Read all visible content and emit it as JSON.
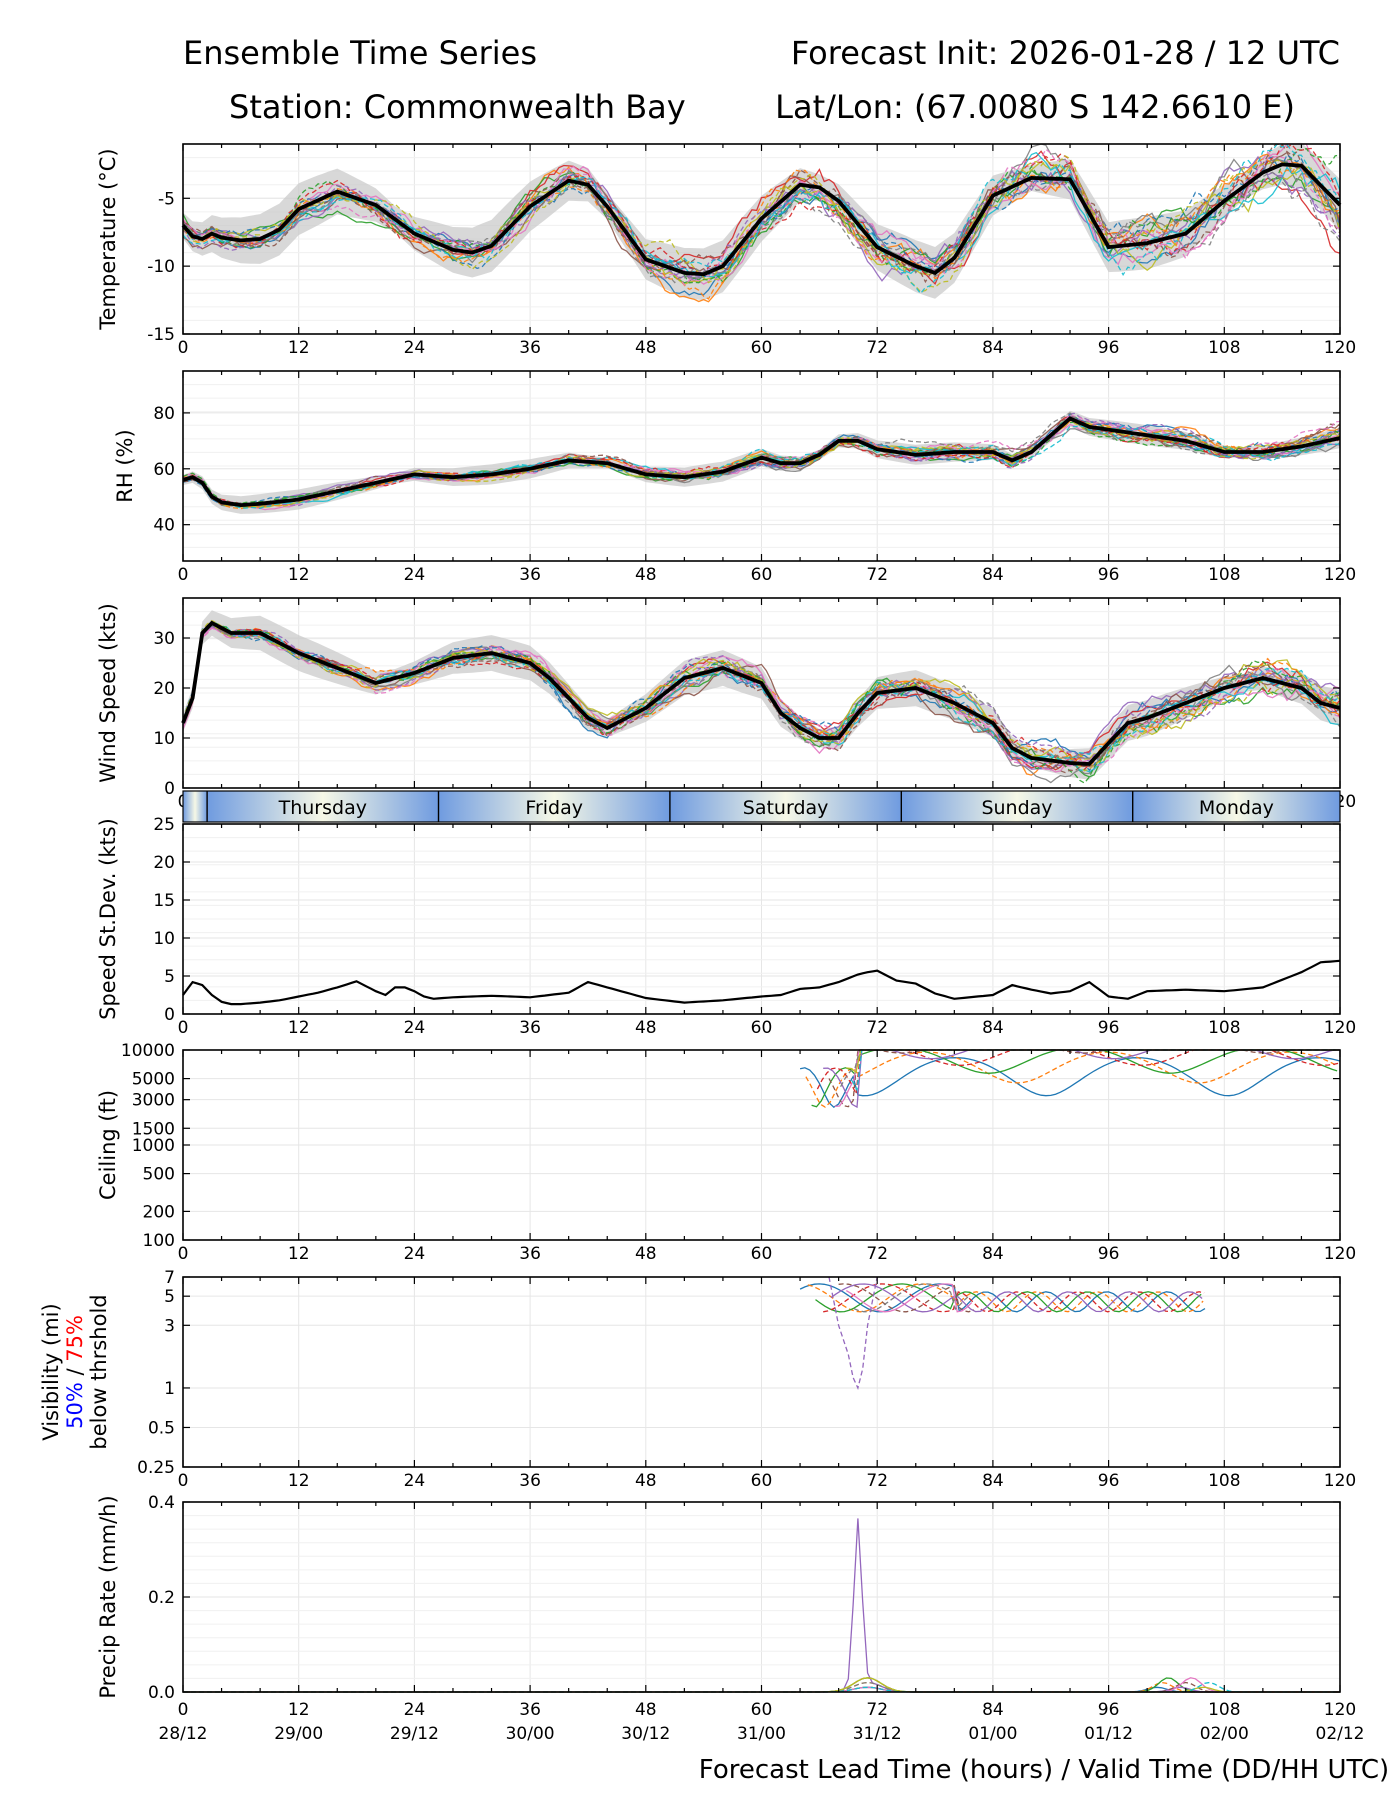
{
  "chart_data": {
    "type": "line",
    "title_left_1": "Ensemble Time Series",
    "title_right_1": "Forecast Init: 2026-01-28 / 12 UTC",
    "title_left_2": "Station: Commonwealth Bay",
    "title_right_2": "Lat/Lon: (67.0080 S 142.6610 E)",
    "xlabel": "Forecast Lead Time (hours) / Valid Time (DD/HH UTC)",
    "xlim": [
      0,
      120
    ],
    "x_ticks": [
      "0",
      "12",
      "24",
      "36",
      "48",
      "60",
      "72",
      "84",
      "96",
      "108",
      "120"
    ],
    "valid_times": [
      "28/12",
      "29/00",
      "29/12",
      "30/00",
      "30/12",
      "31/00",
      "31/12",
      "01/00",
      "01/12",
      "02/00",
      "02/12"
    ],
    "day_band": {
      "days": [
        "Thursday",
        "Friday",
        "Saturday",
        "Sunday",
        "Monday"
      ],
      "boundaries_hours": [
        2.5,
        26.5,
        50.5,
        74.5,
        98.5
      ]
    },
    "panels": [
      {
        "id": "temperature",
        "ylabel": "Temperature (°C)",
        "ylim": [
          -15,
          -1
        ],
        "y_ticks": [
          "-5",
          "-10",
          "-15"
        ],
        "y_tick_values": [
          -5,
          -10,
          -15
        ],
        "scale": "linear",
        "ensemble_mean": {
          "x": [
            0,
            1,
            2,
            3,
            4,
            6,
            8,
            10,
            12,
            16,
            20,
            24,
            28,
            30,
            32,
            36,
            40,
            42,
            44,
            48,
            52,
            54,
            56,
            60,
            64,
            66,
            68,
            72,
            76,
            78,
            80,
            84,
            88,
            92,
            96,
            100,
            104,
            108,
            112,
            114,
            116,
            120
          ],
          "y": [
            -7,
            -7.8,
            -8,
            -7.6,
            -7.9,
            -8.1,
            -8,
            -7.3,
            -5.8,
            -4.5,
            -5.5,
            -7.6,
            -8.8,
            -9,
            -8.5,
            -5.6,
            -3.7,
            -4,
            -5.6,
            -9.5,
            -10.5,
            -10.6,
            -10,
            -6.5,
            -4,
            -4.2,
            -5.2,
            -8.6,
            -10,
            -10.5,
            -9.4,
            -4.8,
            -3.5,
            -3.6,
            -8.6,
            -8.3,
            -7.6,
            -5.2,
            -3.1,
            -2.5,
            -2.6,
            -5.5
          ]
        },
        "spread_width": 1.6
      },
      {
        "id": "rh",
        "ylabel": "RH (%)",
        "ylim": [
          27,
          95
        ],
        "y_ticks": [
          "80",
          "60",
          "40"
        ],
        "y_tick_values": [
          80,
          60,
          40
        ],
        "scale": "linear",
        "ensemble_mean": {
          "x": [
            0,
            1,
            2,
            3,
            4,
            6,
            8,
            12,
            16,
            20,
            24,
            28,
            32,
            36,
            40,
            44,
            48,
            52,
            56,
            60,
            62,
            64,
            66,
            68,
            70,
            72,
            76,
            80,
            84,
            86,
            88,
            90,
            92,
            94,
            96,
            100,
            104,
            108,
            112,
            116,
            120
          ],
          "y": [
            56,
            57,
            55,
            50,
            48,
            47,
            47.5,
            49,
            52,
            55,
            58,
            57,
            58,
            60,
            63,
            62,
            58,
            57,
            59,
            64,
            62,
            62,
            65,
            70,
            70,
            67,
            65,
            66,
            66,
            63,
            66,
            72,
            78,
            75,
            74,
            72,
            70,
            66,
            66,
            68,
            71
          ]
        },
        "spread_width": 3
      },
      {
        "id": "wind",
        "ylabel": "Wind Speed (kts)",
        "ylim": [
          0,
          38
        ],
        "y_ticks": [
          "30",
          "20",
          "10",
          "0"
        ],
        "y_tick_values": [
          30,
          20,
          10,
          0
        ],
        "scale": "linear",
        "ensemble_mean": {
          "x": [
            0,
            1,
            2,
            3,
            4,
            5,
            6,
            8,
            10,
            12,
            16,
            20,
            24,
            28,
            32,
            36,
            38,
            40,
            42,
            44,
            48,
            52,
            56,
            60,
            62,
            64,
            66,
            68,
            70,
            72,
            76,
            80,
            84,
            86,
            88,
            92,
            94,
            96,
            98,
            100,
            104,
            108,
            112,
            116,
            118,
            120
          ],
          "y": [
            13,
            18,
            31,
            33,
            32,
            31,
            31,
            31,
            29,
            27,
            24,
            21,
            23,
            26,
            27,
            25,
            22,
            18,
            14,
            12,
            16,
            22,
            24,
            21,
            15,
            12,
            10,
            10,
            15,
            19,
            20,
            17,
            13,
            8,
            6,
            5,
            4.8,
            9,
            13,
            14,
            17,
            20,
            22,
            20,
            17,
            16
          ]
        },
        "spread_width": 3
      },
      {
        "id": "speed_stdev",
        "ylabel": "Speed St.Dev. (kts)",
        "ylim": [
          0,
          25
        ],
        "y_ticks": [
          "25",
          "20",
          "15",
          "10",
          "5",
          "0"
        ],
        "y_tick_values": [
          25,
          20,
          15,
          10,
          5,
          0
        ],
        "scale": "linear",
        "ensemble_mean": {
          "x": [
            0,
            1,
            2,
            3,
            4,
            5,
            6,
            8,
            10,
            12,
            14,
            16,
            18,
            20,
            21,
            22,
            23,
            24,
            25,
            26,
            28,
            32,
            36,
            40,
            42,
            44,
            48,
            52,
            56,
            60,
            62,
            64,
            66,
            68,
            70,
            71,
            72,
            74,
            76,
            78,
            80,
            84,
            86,
            88,
            90,
            92,
            94,
            96,
            98,
            100,
            104,
            108,
            112,
            116,
            118,
            120
          ],
          "y": [
            2.5,
            4.2,
            3.8,
            2.5,
            1.6,
            1.3,
            1.3,
            1.5,
            1.8,
            2.3,
            2.8,
            3.5,
            4.3,
            3.0,
            2.5,
            3.5,
            3.5,
            3.0,
            2.3,
            2.0,
            2.2,
            2.4,
            2.2,
            2.8,
            4.2,
            3.5,
            2.1,
            1.5,
            1.8,
            2.3,
            2.5,
            3.3,
            3.5,
            4.2,
            5.2,
            5.5,
            5.7,
            4.4,
            4.0,
            2.7,
            2.0,
            2.5,
            3.8,
            3.2,
            2.7,
            3.0,
            4.2,
            2.3,
            2.0,
            3.0,
            3.2,
            3.0,
            3.5,
            5.5,
            6.8,
            7.0
          ]
        },
        "spread_width": 0
      },
      {
        "id": "ceiling",
        "ylabel": "Ceiling (ft)",
        "ylim": [
          100,
          10000
        ],
        "y_ticks": [
          "10000",
          "5000",
          "3000",
          "1500",
          "1000",
          "500",
          "200",
          "100"
        ],
        "y_tick_values": [
          10000,
          5000,
          3000,
          1500,
          1000,
          500,
          200,
          100
        ],
        "scale": "log",
        "ensemble_mean": null,
        "spread_width": 0
      },
      {
        "id": "visibility",
        "ylabel": "Visibility (mi)",
        "ylabel_blue": "50%",
        "ylabel_sep": " / ",
        "ylabel_red": "75%",
        "ylabel_sub": "below thrshold",
        "ylim": [
          0.25,
          7
        ],
        "y_ticks": [
          "7",
          "5",
          "3",
          "1",
          "0.5",
          "0.25"
        ],
        "y_tick_values": [
          7,
          5,
          3,
          1,
          0.5,
          0.25
        ],
        "scale": "log",
        "ensemble_mean": null,
        "spread_width": 0
      },
      {
        "id": "precip",
        "ylabel": "Precip Rate (mm/h)",
        "ylim": [
          0,
          0.4
        ],
        "y_ticks": [
          "0.4",
          "0.2",
          "0.0"
        ],
        "y_tick_values": [
          0.4,
          0.2,
          0.0
        ],
        "scale": "linear",
        "ensemble_mean": null,
        "spread_width": 0
      }
    ],
    "member_colors": [
      "#1f77b4",
      "#ff7f0e",
      "#2ca02c",
      "#d62728",
      "#9467bd",
      "#8c564b",
      "#e377c2",
      "#7f7f7f",
      "#bcbd22",
      "#17becf"
    ],
    "mean_color": "#000000",
    "spread_color": "#c8c8c8"
  }
}
